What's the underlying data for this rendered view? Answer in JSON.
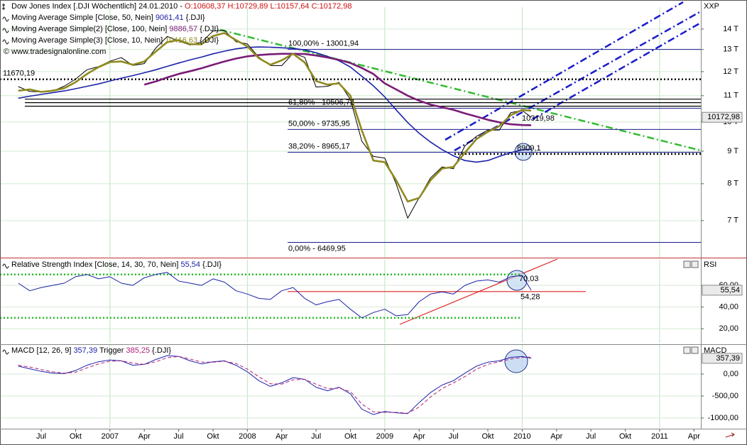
{
  "chart_data": [
    {
      "type": "line",
      "title": "Dow Jones Index [.DJI  Wöchentlich]  24.01.2010 -",
      "subtitle": "O:10608,37 H:10729,89 L:10157,64 C:10172,98",
      "source": "© www.tradesignalonline.com",
      "axis_title": "XXP",
      "log_scale": true,
      "grid": true,
      "ylim": [
        6170,
        15000
      ],
      "yticks": [
        {
          "value": 7000,
          "label": "7 T"
        },
        {
          "value": 8000,
          "label": "8 T"
        },
        {
          "value": 9000,
          "label": "9 T"
        },
        {
          "value": 10000,
          "label": "10 T"
        },
        {
          "value": 11000,
          "label": "11 T"
        },
        {
          "value": 12000,
          "label": "12 T"
        },
        {
          "value": 13000,
          "label": "13 T"
        },
        {
          "value": 14000,
          "label": "14 T"
        }
      ],
      "x": [
        2006.333,
        2006.417,
        2006.5,
        2006.583,
        2006.667,
        2006.75,
        2006.833,
        2006.917,
        2007,
        2007.083,
        2007.167,
        2007.25,
        2007.333,
        2007.417,
        2007.5,
        2007.583,
        2007.667,
        2007.75,
        2007.833,
        2007.917,
        2008,
        2008.083,
        2008.167,
        2008.25,
        2008.333,
        2008.417,
        2008.5,
        2008.583,
        2008.667,
        2008.75,
        2008.833,
        2008.917,
        2009,
        2009.083,
        2009.167,
        2009.25,
        2009.333,
        2009.417,
        2009.5,
        2009.583,
        2009.667,
        2009.75,
        2009.833,
        2009.917,
        2010,
        2010.065
      ],
      "series": [
        {
          "color": "#000000",
          "width": 1,
          "last_label": "10172,98",
          "box": true,
          "values": [
            11367,
            11168,
            11150,
            11186,
            11381,
            11679,
            12081,
            12222,
            12463,
            12622,
            12269,
            12354,
            13063,
            13628,
            13409,
            13212,
            13358,
            13896,
            13930,
            13372,
            13265,
            12650,
            12266,
            12263,
            12820,
            12638,
            11350,
            11378,
            11544,
            10851,
            9325,
            8829,
            8776,
            8001,
            7063,
            7609,
            8168,
            8500,
            8447,
            9172,
            9496,
            9712,
            9713,
            10345,
            10428,
            10172.98
          ]
        },
        {
          "name": "Moving Average Simple [Close, 50, Nein]",
          "last_label": "9061,41",
          "suffix": "{.DJI}",
          "color": "#1c22a8",
          "width": 1.6,
          "values": [
            10900,
            10980,
            11050,
            11120,
            11190,
            11280,
            11380,
            11480,
            11600,
            11720,
            11830,
            11950,
            12080,
            12230,
            12380,
            12520,
            12650,
            12800,
            12920,
            13030,
            13100,
            13120,
            13110,
            13080,
            13050,
            12980,
            12850,
            12680,
            12480,
            12200,
            11800,
            11400,
            10950,
            10450,
            9980,
            9600,
            9300,
            9050,
            8850,
            8700,
            8650,
            8700,
            8830,
            8950,
            9040,
            9061.41
          ]
        },
        {
          "name": "Moving Average Simple(2) [Close, 100, Nein]",
          "last_label": "9886,57",
          "suffix": "{.DJI}",
          "color": "#7a1c78",
          "width": 2.6,
          "values": [
            null,
            null,
            null,
            null,
            null,
            null,
            null,
            null,
            null,
            null,
            null,
            11450,
            11580,
            11750,
            11900,
            12020,
            12150,
            12300,
            12450,
            12580,
            12680,
            12740,
            12780,
            12800,
            12800,
            12790,
            12720,
            12630,
            12520,
            12380,
            12160,
            11900,
            11500,
            11250,
            11000,
            10800,
            10650,
            10550,
            10450,
            10320,
            10200,
            10080,
            9990,
            9920,
            9890,
            9886.57
          ]
        },
        {
          "name": "Moving Average Simple(3) [Close, 10, Nein]",
          "last_label": "10416,63",
          "suffix": "{.DJI}",
          "color": "#8f8a1f",
          "width": 2.6,
          "values": [
            11200,
            11250,
            11150,
            11200,
            11300,
            11550,
            11900,
            12200,
            12420,
            12450,
            12300,
            12450,
            12900,
            13350,
            13450,
            13250,
            13250,
            13650,
            13800,
            13450,
            13150,
            12600,
            12300,
            12500,
            12800,
            12400,
            11600,
            11450,
            11500,
            11000,
            9700,
            8700,
            8650,
            8100,
            7500,
            7600,
            8100,
            8450,
            8500,
            8950,
            9400,
            9650,
            9850,
            10250,
            10450,
            10416.63
          ]
        }
      ],
      "fib_color": "#1a1a8c",
      "fib_levels": [
        {
          "value": 13001.94,
          "label": "100,00% - 13001,94"
        },
        {
          "value": 10506.72,
          "label": "61,80% - 10506,72"
        },
        {
          "value": 9735.95,
          "label": "50,00% - 9735,95"
        },
        {
          "value": 8965.17,
          "label": "38,20% - 8965,17"
        },
        {
          "value": 6469.95,
          "label": "0,00% - 6469,95"
        }
      ],
      "hlines": [
        {
          "value": 11670.19,
          "label": "11670,19",
          "style": "dotted",
          "color": "#000000"
        },
        {
          "value": 8909.1,
          "label": "8909,1",
          "style": "dotted",
          "color": "#000000"
        },
        {
          "value": 10863,
          "style": "solid",
          "color": "#000000"
        },
        {
          "value": 10725,
          "style": "solid",
          "color": "#000000"
        },
        {
          "value": 10589,
          "style": "solid",
          "color": "#000000"
        }
      ],
      "annotations": [
        "10319,98"
      ]
    },
    {
      "type": "line",
      "axis_title": "RSI",
      "grid": true,
      "ylim": [
        9,
        81
      ],
      "yticks": [
        {
          "value": 20,
          "label": "20,00"
        },
        {
          "value": 40,
          "label": "40,00"
        },
        {
          "value": 60,
          "label": "60,00"
        }
      ],
      "x": [
        2006.333,
        2006.417,
        2006.5,
        2006.583,
        2006.667,
        2006.75,
        2006.833,
        2006.917,
        2007,
        2007.083,
        2007.167,
        2007.25,
        2007.333,
        2007.417,
        2007.5,
        2007.583,
        2007.667,
        2007.75,
        2007.833,
        2007.917,
        2008,
        2008.083,
        2008.167,
        2008.25,
        2008.333,
        2008.417,
        2008.5,
        2008.583,
        2008.667,
        2008.75,
        2008.833,
        2008.917,
        2009,
        2009.083,
        2009.167,
        2009.25,
        2009.333,
        2009.417,
        2009.5,
        2009.583,
        2009.667,
        2009.75,
        2009.833,
        2009.917,
        2010,
        2010.065
      ],
      "series": [
        {
          "name": "Relative Strength Index [Close, 14, 30, 70, Nein]",
          "last_label": "55,54",
          "suffix": "{.DJI}",
          "color": "#1c22a8",
          "width": 1,
          "box": true,
          "values": [
            62,
            55,
            58,
            60,
            62,
            68,
            70,
            66,
            68,
            62,
            60,
            67,
            70,
            72,
            64,
            62,
            60,
            66,
            63,
            55,
            52,
            48,
            47,
            55,
            58,
            48,
            42,
            45,
            47,
            38,
            30,
            35,
            38,
            32,
            33,
            45,
            52,
            54,
            52,
            60,
            64,
            65,
            63,
            68,
            69,
            55.54
          ]
        }
      ],
      "hlines": [
        {
          "value": 70,
          "style": "dotted",
          "color": "#22bb22"
        },
        {
          "value": 30,
          "style": "dotted",
          "color": "#22bb22"
        },
        {
          "value": 54.28,
          "label": "54,28",
          "style": "solid",
          "color": "#e02020"
        }
      ],
      "annotations": [
        "70,03"
      ]
    },
    {
      "type": "line",
      "axis_title": "MACD",
      "grid": true,
      "legend_inline": true,
      "ylim": [
        -1177,
        597
      ],
      "yticks": [
        {
          "value": -1000,
          "label": "-1000,00"
        },
        {
          "value": -500,
          "label": "-500,00"
        },
        {
          "value": 0,
          "label": "0,00"
        }
      ],
      "xlim": [
        2006.2,
        2011.3
      ],
      "xticks": [
        {
          "value": 2006.5,
          "label": "Jul"
        },
        {
          "value": 2006.75,
          "label": "Okt"
        },
        2007,
        {
          "value": 2007.25,
          "label": "Apr"
        },
        {
          "value": 2007.5,
          "label": "Jul"
        },
        {
          "value": 2007.75,
          "label": "Okt"
        },
        2008,
        {
          "value": 2008.25,
          "label": "Apr"
        },
        {
          "value": 2008.5,
          "label": "Jul"
        },
        {
          "value": 2008.75,
          "label": "Okt"
        },
        2009,
        {
          "value": 2009.25,
          "label": "Apr"
        },
        {
          "value": 2009.5,
          "label": "Jul"
        },
        {
          "value": 2009.75,
          "label": "Okt"
        },
        2010,
        {
          "value": 2010.25,
          "label": "Apr"
        },
        {
          "value": 2010.5,
          "label": "Jul"
        },
        {
          "value": 2010.75,
          "label": "Okt"
        },
        2011,
        {
          "value": 2011.25,
          "label": "Apr"
        }
      ],
      "x": [
        2006.333,
        2006.417,
        2006.5,
        2006.583,
        2006.667,
        2006.75,
        2006.833,
        2006.917,
        2007,
        2007.083,
        2007.167,
        2007.25,
        2007.333,
        2007.417,
        2007.5,
        2007.583,
        2007.667,
        2007.75,
        2007.833,
        2007.917,
        2008,
        2008.083,
        2008.167,
        2008.25,
        2008.333,
        2008.417,
        2008.5,
        2008.583,
        2008.667,
        2008.75,
        2008.833,
        2008.917,
        2009,
        2009.083,
        2009.167,
        2009.25,
        2009.333,
        2009.417,
        2009.5,
        2009.583,
        2009.667,
        2009.75,
        2009.833,
        2009.917,
        2010,
        2010.065
      ],
      "series": [
        {
          "name": "MACD [12, 26, 9]",
          "last_label": "357,39",
          "color": "#1c22a8",
          "width": 1,
          "box": true,
          "values": [
            180,
            120,
            60,
            20,
            10,
            80,
            200,
            280,
            320,
            300,
            200,
            220,
            330,
            420,
            400,
            300,
            230,
            280,
            300,
            200,
            50,
            -150,
            -280,
            -200,
            -80,
            -120,
            -300,
            -380,
            -300,
            -450,
            -800,
            -920,
            -850,
            -880,
            -900,
            -650,
            -420,
            -250,
            -150,
            20,
            180,
            270,
            300,
            380,
            400,
            357.39
          ]
        },
        {
          "name": "Trigger",
          "last_label": "385,25",
          "suffix": "{.DJI}",
          "color": "#b0207a",
          "width": 1,
          "dash": true,
          "values": [
            200,
            160,
            100,
            50,
            20,
            40,
            140,
            230,
            290,
            300,
            250,
            220,
            280,
            370,
            400,
            340,
            270,
            270,
            290,
            240,
            110,
            -60,
            -220,
            -230,
            -130,
            -120,
            -230,
            -330,
            -320,
            -400,
            -680,
            -860,
            -870,
            -870,
            -890,
            -750,
            -520,
            -330,
            -200,
            -60,
            110,
            220,
            280,
            340,
            380,
            385.25
          ]
        }
      ]
    }
  ]
}
